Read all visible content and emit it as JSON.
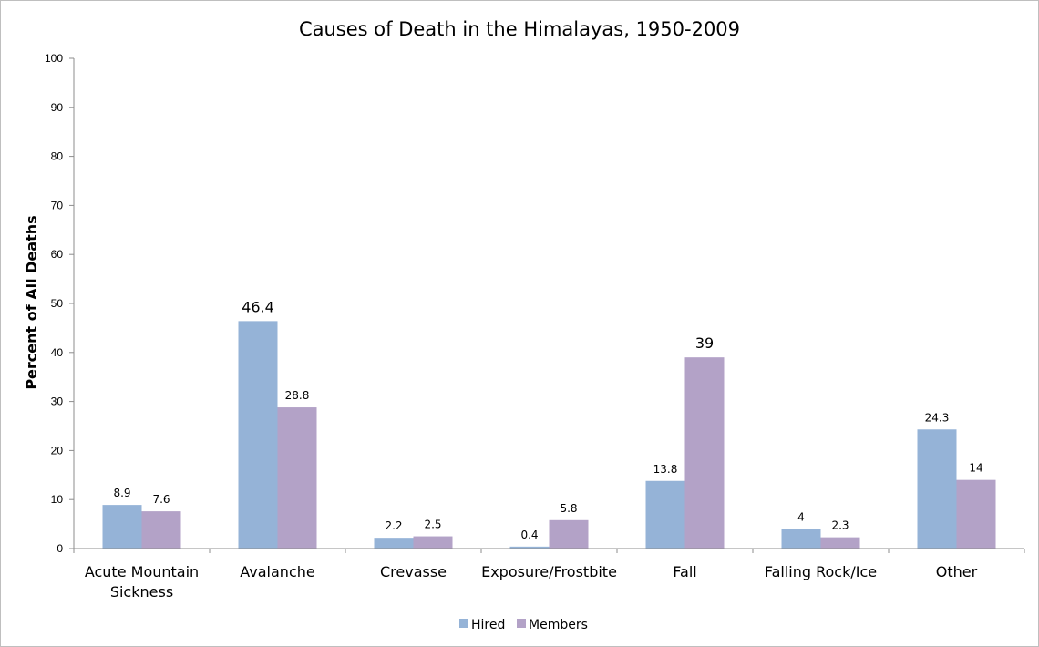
{
  "chart_data": {
    "type": "bar",
    "title": "Causes of Death in the Himalayas, 1950-2009",
    "xlabel": "",
    "ylabel": "Percent of All Deaths",
    "ylim": [
      0,
      100
    ],
    "yticks": [
      0,
      10,
      20,
      30,
      40,
      50,
      60,
      70,
      80,
      90,
      100
    ],
    "grid": false,
    "legend_position": "bottom",
    "categories": [
      [
        "Acute Mountain",
        "Sickness"
      ],
      [
        "Avalanche"
      ],
      [
        "Crevasse"
      ],
      [
        "Exposure/Frostbite"
      ],
      [
        "Fall"
      ],
      [
        "Falling Rock/Ice"
      ],
      [
        "Other"
      ]
    ],
    "series": [
      {
        "name": "Hired",
        "color": "#95b3d7",
        "values": [
          8.9,
          46.4,
          2.2,
          0.4,
          13.8,
          4,
          24.3
        ]
      },
      {
        "name": "Members",
        "color": "#b3a2c7",
        "values": [
          7.6,
          28.8,
          2.5,
          5.8,
          39,
          2.3,
          14
        ]
      }
    ],
    "data_labels": [
      [
        "8.9",
        "46.4",
        "2.2",
        "0.4",
        "13.8",
        "4",
        "24.3"
      ],
      [
        "7.6",
        "28.8",
        "2.5",
        "5.8",
        "39",
        "2.3",
        "14"
      ]
    ],
    "emphasized_labels": [
      [
        false,
        true,
        false,
        false,
        false,
        false,
        false
      ],
      [
        false,
        false,
        false,
        false,
        true,
        false,
        false
      ]
    ]
  }
}
